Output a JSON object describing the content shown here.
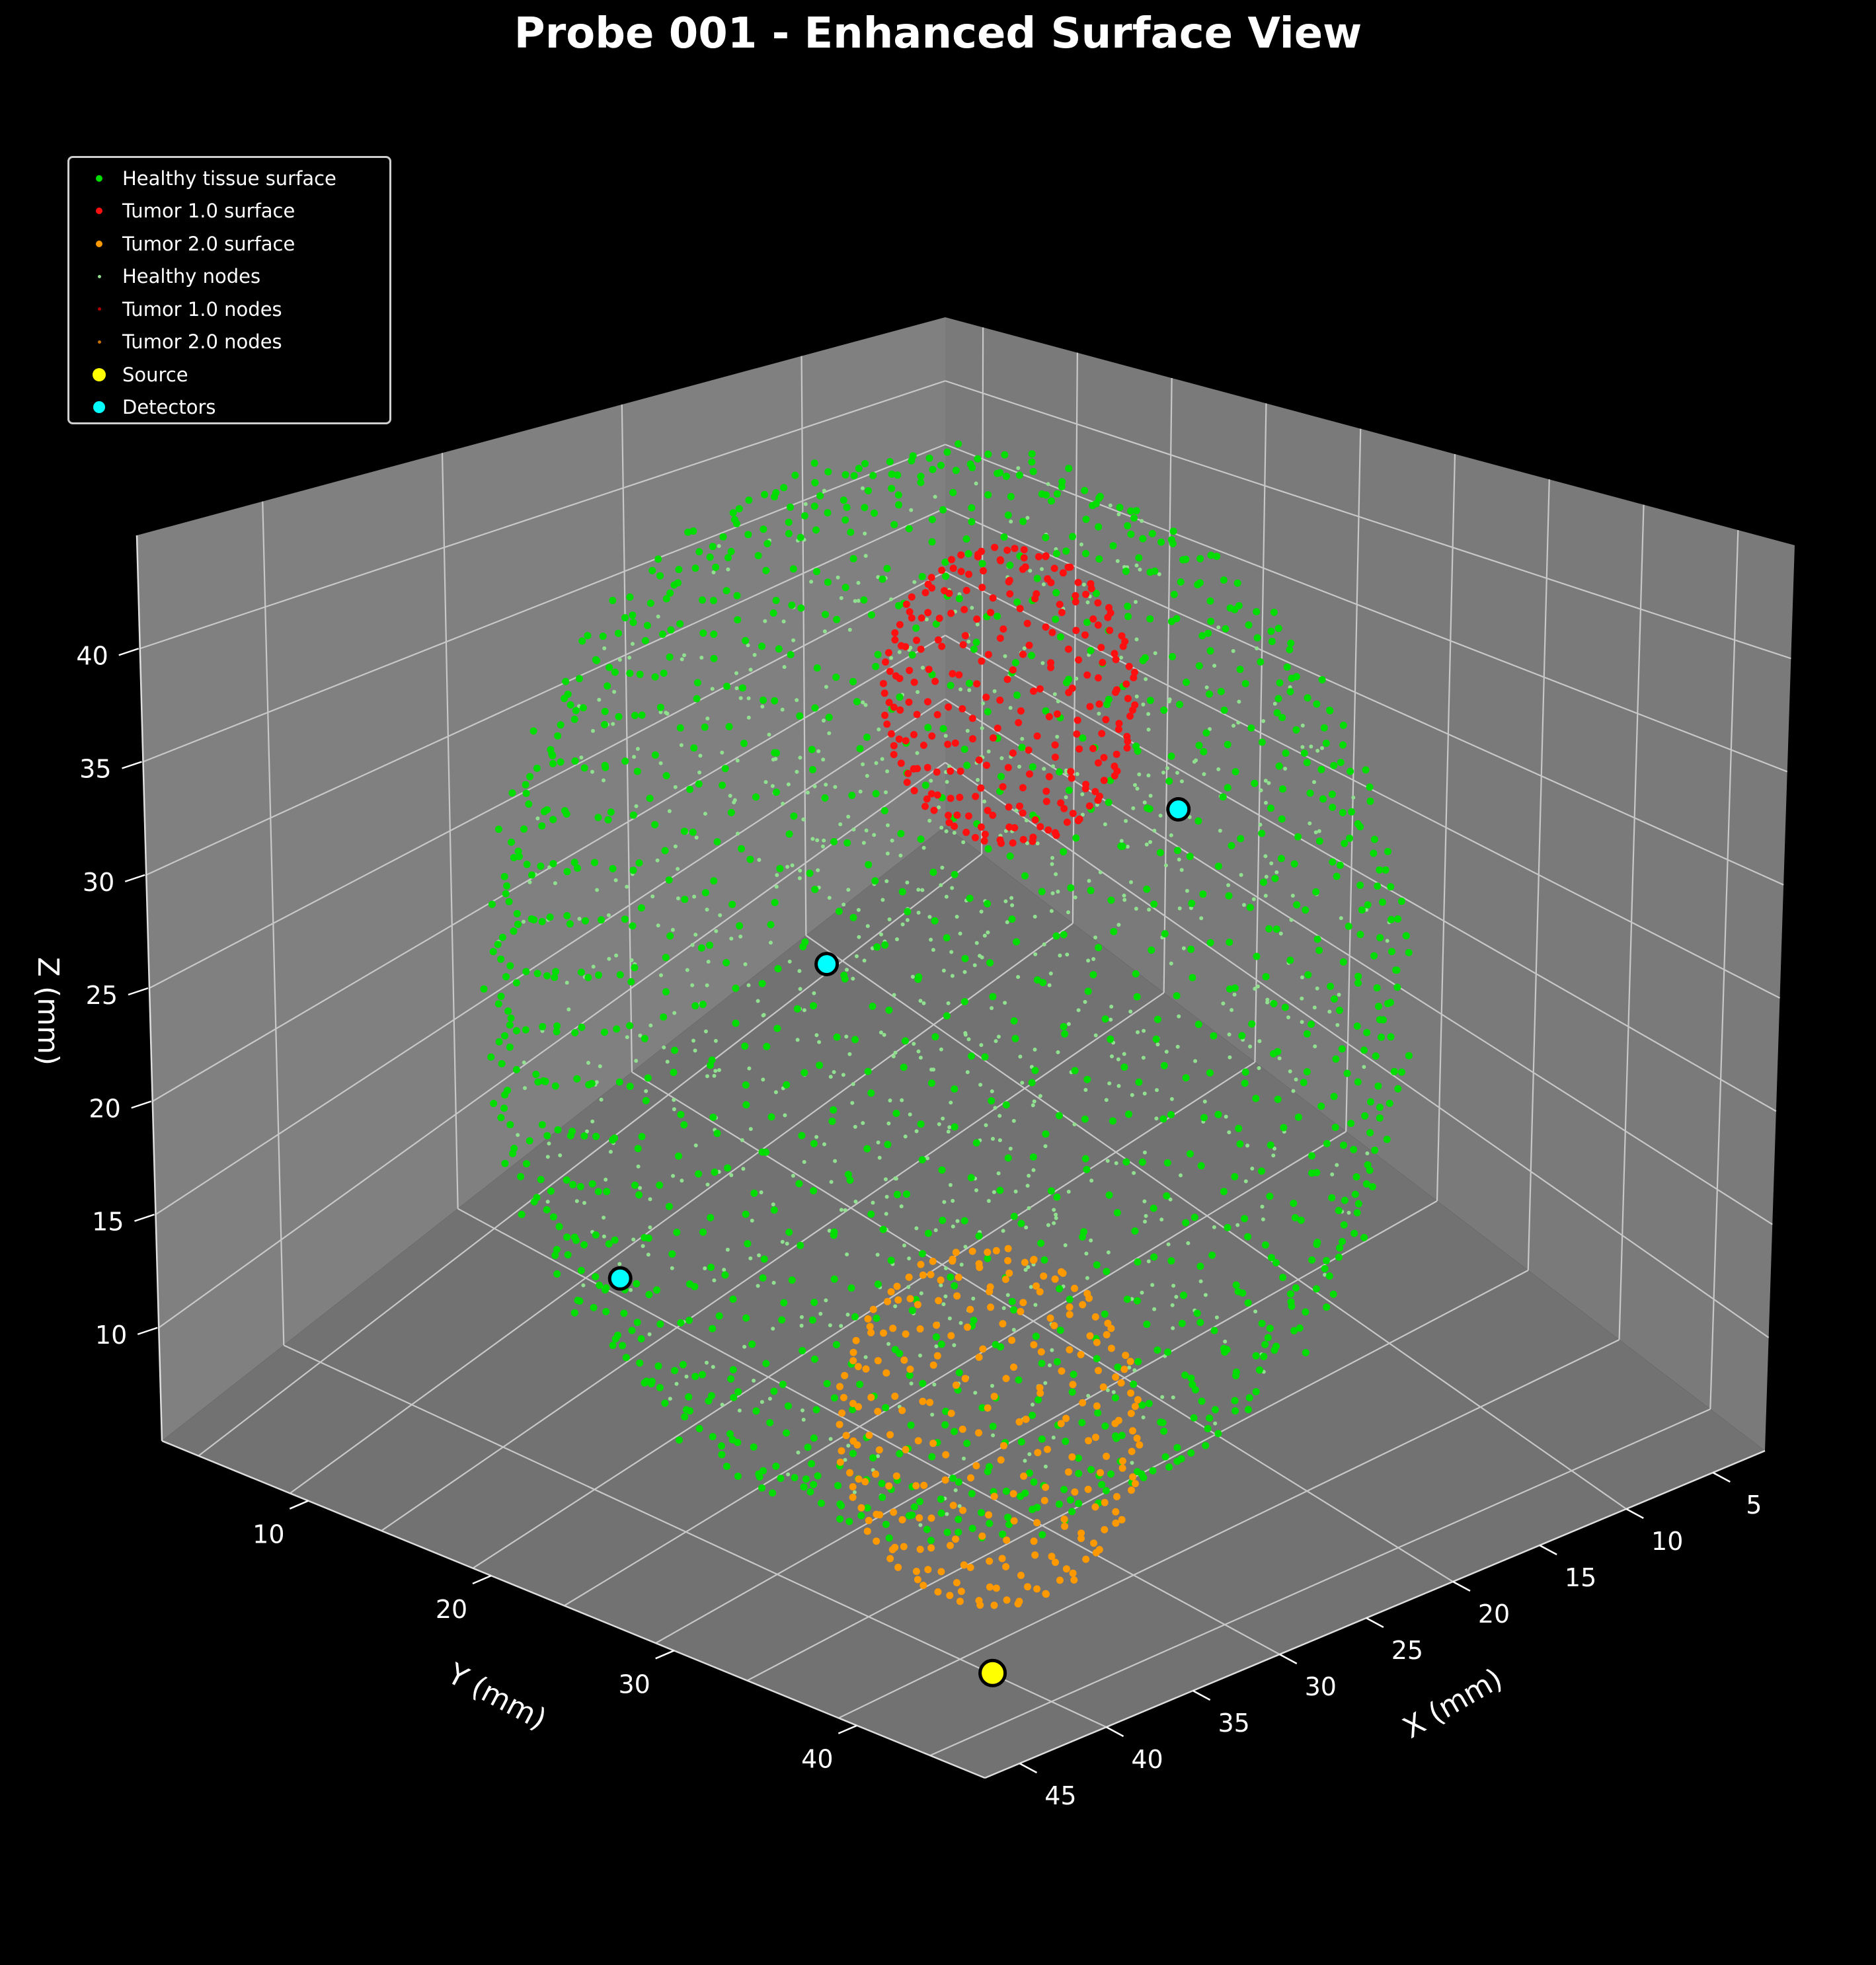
{
  "title": "Probe 001 - Enhanced Surface View",
  "chart_data": {
    "type": "scatter",
    "projection": "3d",
    "xlabel": "X (mm)",
    "ylabel": "Y (mm)",
    "zlabel": "Z (mm)",
    "xlim": [
      2,
      47
    ],
    "ylim": [
      2,
      47
    ],
    "zlim": [
      5,
      45
    ],
    "x_ticks": [
      5,
      10,
      15,
      20,
      25,
      30,
      35,
      40,
      45
    ],
    "y_ticks": [
      10,
      20,
      30,
      40
    ],
    "z_ticks": [
      10,
      15,
      20,
      25,
      30,
      35,
      40
    ],
    "grid": true,
    "legend_position": "upper-left",
    "tissue_sphere": {
      "center": [
        25,
        25,
        25
      ],
      "radius": 18
    },
    "tumors": [
      {
        "name": "Tumor 1.0",
        "center": [
          33,
          13,
          26
        ],
        "radius": 5
      },
      {
        "name": "Tumor 2.0",
        "center": [
          14,
          34,
          18
        ],
        "radius": 6
      }
    ],
    "series": [
      {
        "name": "Healthy tissue surface",
        "color": "#00dd00",
        "marker_size": 10
      },
      {
        "name": "Tumor 1.0 surface",
        "color": "#ff1010",
        "marker_size": 10
      },
      {
        "name": "Tumor 2.0 surface",
        "color": "#ff9900",
        "marker_size": 10
      },
      {
        "name": "Healthy nodes",
        "color": "#90e090",
        "marker_size": 5
      },
      {
        "name": "Tumor 1.0 nodes",
        "color": "#b00000",
        "marker_size": 5
      },
      {
        "name": "Tumor 2.0 nodes",
        "color": "#c87000",
        "marker_size": 5
      },
      {
        "name": "Source",
        "color": "#ffff00",
        "marker_size": 20,
        "points": [
          [
            10,
            38,
            12
          ]
        ]
      },
      {
        "name": "Detectors",
        "color": "#00ffff",
        "marker_size": 18,
        "points": [
          [
            17,
            20,
            35
          ],
          [
            43,
            13,
            8
          ],
          [
            40,
            28,
            5
          ]
        ]
      }
    ]
  }
}
